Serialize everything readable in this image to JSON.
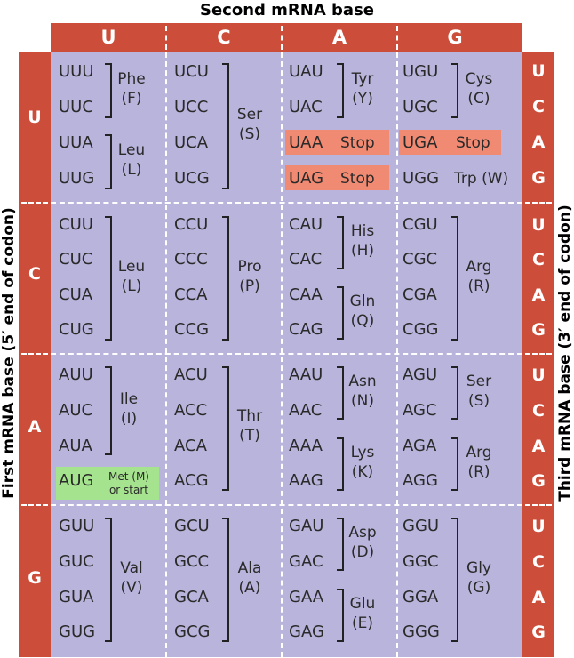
{
  "second_title": "Second mRNA base",
  "first_title": "First mRNA base  (5′ end of codon)",
  "third_title": "Third mRNA base  (3′ end of codon)",
  "bases": [
    "U",
    "C",
    "A",
    "G"
  ],
  "colors": {
    "header": "#cc4e3a",
    "table": "#b9b4dc",
    "stop": "#f08a72",
    "start": "#a6e38f"
  },
  "codons": {
    "r0": {
      "c0": [
        "UUU",
        "UUC",
        "UUA",
        "UUG"
      ],
      "c1": [
        "UCU",
        "UCC",
        "UCA",
        "UCG"
      ],
      "c2": [
        "UAU",
        "UAC",
        "UAA",
        "UAG"
      ],
      "c3": [
        "UGU",
        "UGC",
        "UGA",
        "UGG"
      ]
    },
    "r1": {
      "c0": [
        "CUU",
        "CUC",
        "CUA",
        "CUG"
      ],
      "c1": [
        "CCU",
        "CCC",
        "CCA",
        "CCG"
      ],
      "c2": [
        "CAU",
        "CAC",
        "CAA",
        "CAG"
      ],
      "c3": [
        "CGU",
        "CGC",
        "CGA",
        "CGG"
      ]
    },
    "r2": {
      "c0": [
        "AUU",
        "AUC",
        "AUA",
        "AUG"
      ],
      "c1": [
        "ACU",
        "ACC",
        "ACA",
        "ACG"
      ],
      "c2": [
        "AAU",
        "AAC",
        "AAA",
        "AAG"
      ],
      "c3": [
        "AGU",
        "AGC",
        "AGA",
        "AGG"
      ]
    },
    "r3": {
      "c0": [
        "GUU",
        "GUC",
        "GUA",
        "GUG"
      ],
      "c1": [
        "GCU",
        "GCC",
        "GCA",
        "GCG"
      ],
      "c2": [
        "GAU",
        "GAC",
        "GAA",
        "GAG"
      ],
      "c3": [
        "GGU",
        "GGC",
        "GGA",
        "GGG"
      ]
    }
  },
  "aa": {
    "phe": [
      "Phe",
      "(F)"
    ],
    "leu": [
      "Leu",
      "(L)"
    ],
    "ser": [
      "Ser",
      "(S)"
    ],
    "tyr": [
      "Tyr",
      "(Y)"
    ],
    "cys": [
      "Cys",
      "(C)"
    ],
    "trp": "Trp (W)",
    "stop": "Stop",
    "pro": [
      "Pro",
      "(P)"
    ],
    "his": [
      "His",
      "(H)"
    ],
    "gln": [
      "Gln",
      "(Q)"
    ],
    "arg": [
      "Arg",
      "(R)"
    ],
    "ile": [
      "Ile",
      "(I)"
    ],
    "thr": [
      "Thr",
      "(T)"
    ],
    "asn": [
      "Asn",
      "(N)"
    ],
    "lys": [
      "Lys",
      "(K)"
    ],
    "met": [
      "Met (M)",
      "or start"
    ],
    "val": [
      "Val",
      "(V)"
    ],
    "ala": [
      "Ala",
      "(A)"
    ],
    "asp": [
      "Asp",
      "(D)"
    ],
    "glu": [
      "Glu",
      "(E)"
    ],
    "gly": [
      "Gly",
      "(G)"
    ]
  }
}
